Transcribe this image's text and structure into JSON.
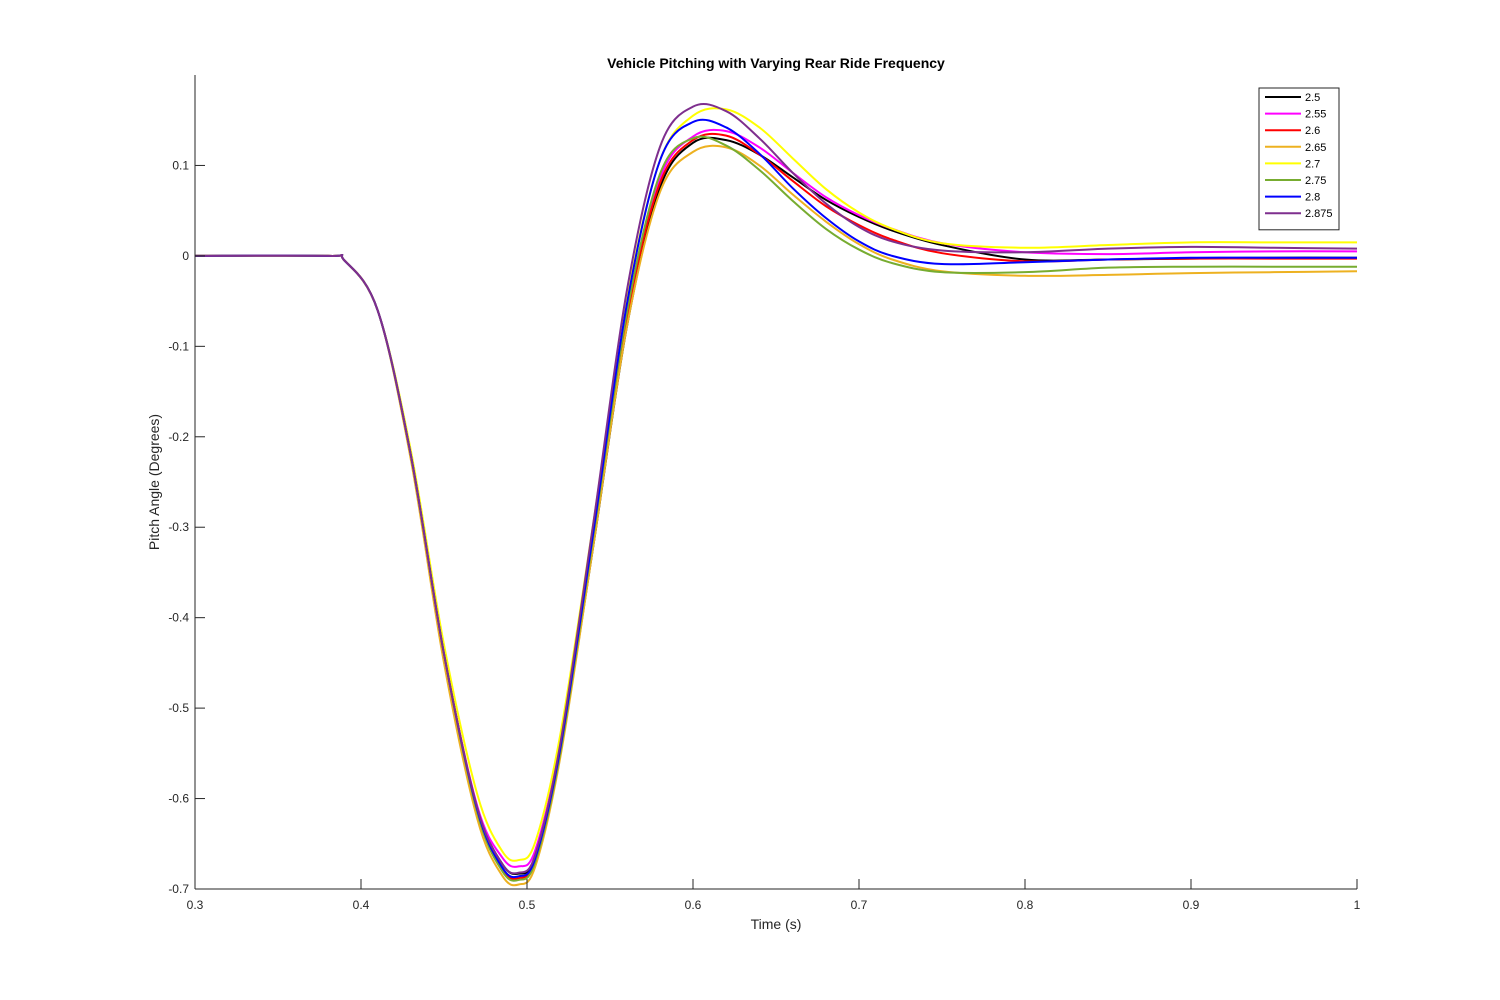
{
  "chart_data": {
    "type": "line",
    "title": "Vehicle Pitching with Varying Rear Ride Frequency",
    "xlabel": "Time (s)",
    "ylabel": "Pitch Angle (Degrees)",
    "xlim": [
      0.3,
      1.0
    ],
    "ylim": [
      -0.7,
      0.2
    ],
    "xticks": [
      0.3,
      0.4,
      0.5,
      0.6,
      0.7,
      0.8,
      0.9,
      1.0
    ],
    "xtick_labels": [
      "0.3",
      "0.4",
      "0.5",
      "0.6",
      "0.7",
      "0.8",
      "0.9",
      "1"
    ],
    "yticks": [
      -0.7,
      -0.6,
      -0.5,
      -0.4,
      -0.3,
      -0.2,
      -0.1,
      0,
      0.1
    ],
    "ytick_labels": [
      "-0.7",
      "-0.6",
      "-0.5",
      "-0.4",
      "-0.3",
      "-0.2",
      "-0.1",
      "0",
      "0.1"
    ],
    "grid": false,
    "legend_position": "top-right",
    "series": [
      {
        "name": "2.5",
        "color": "#000000",
        "x": [
          0.3,
          0.38,
          0.39,
          0.41,
          0.43,
          0.45,
          0.47,
          0.485,
          0.495,
          0.505,
          0.52,
          0.54,
          0.56,
          0.58,
          0.6,
          0.62,
          0.64,
          0.66,
          0.68,
          0.7,
          0.72,
          0.75,
          0.8,
          0.85,
          0.9,
          0.95,
          1.0
        ],
        "y": [
          0,
          0,
          -0.005,
          -0.06,
          -0.22,
          -0.44,
          -0.61,
          -0.672,
          -0.683,
          -0.665,
          -0.55,
          -0.32,
          -0.08,
          0.075,
          0.125,
          0.128,
          0.112,
          0.087,
          0.062,
          0.043,
          0.028,
          0.012,
          -0.004,
          -0.004,
          -0.003,
          -0.002,
          -0.002
        ]
      },
      {
        "name": "2.55",
        "color": "#ff00ff",
        "x": [
          0.3,
          0.38,
          0.39,
          0.41,
          0.43,
          0.45,
          0.47,
          0.485,
          0.495,
          0.505,
          0.52,
          0.54,
          0.56,
          0.58,
          0.6,
          0.62,
          0.64,
          0.66,
          0.68,
          0.7,
          0.72,
          0.75,
          0.8,
          0.85,
          0.9,
          0.95,
          1.0
        ],
        "y": [
          0,
          0,
          -0.005,
          -0.06,
          -0.22,
          -0.44,
          -0.608,
          -0.665,
          -0.675,
          -0.657,
          -0.54,
          -0.31,
          -0.07,
          0.085,
          0.132,
          0.138,
          0.12,
          0.092,
          0.065,
          0.045,
          0.03,
          0.014,
          0.004,
          0.002,
          0.004,
          0.005,
          0.005
        ]
      },
      {
        "name": "2.6",
        "color": "#ff0000",
        "x": [
          0.3,
          0.38,
          0.39,
          0.41,
          0.43,
          0.45,
          0.47,
          0.485,
          0.495,
          0.505,
          0.52,
          0.54,
          0.56,
          0.58,
          0.6,
          0.62,
          0.64,
          0.66,
          0.68,
          0.7,
          0.72,
          0.75,
          0.8,
          0.85,
          0.9,
          0.95,
          1.0
        ],
        "y": [
          0,
          0,
          -0.005,
          -0.06,
          -0.22,
          -0.44,
          -0.612,
          -0.678,
          -0.688,
          -0.668,
          -0.55,
          -0.315,
          -0.07,
          0.08,
          0.128,
          0.133,
          0.112,
          0.083,
          0.055,
          0.034,
          0.018,
          0.003,
          -0.006,
          -0.004,
          -0.003,
          -0.003,
          -0.003
        ]
      },
      {
        "name": "2.65",
        "color": "#edb120",
        "x": [
          0.3,
          0.38,
          0.39,
          0.41,
          0.43,
          0.45,
          0.47,
          0.485,
          0.495,
          0.505,
          0.52,
          0.54,
          0.56,
          0.58,
          0.6,
          0.62,
          0.64,
          0.66,
          0.68,
          0.7,
          0.72,
          0.75,
          0.8,
          0.85,
          0.9,
          0.95,
          1.0
        ],
        "y": [
          0,
          0,
          -0.005,
          -0.06,
          -0.225,
          -0.45,
          -0.622,
          -0.685,
          -0.695,
          -0.675,
          -0.555,
          -0.32,
          -0.08,
          0.07,
          0.115,
          0.12,
          0.1,
          0.068,
          0.038,
          0.013,
          -0.004,
          -0.017,
          -0.022,
          -0.021,
          -0.019,
          -0.018,
          -0.017
        ]
      },
      {
        "name": "2.7",
        "color": "#ffff00",
        "x": [
          0.3,
          0.38,
          0.39,
          0.41,
          0.43,
          0.45,
          0.47,
          0.485,
          0.495,
          0.505,
          0.52,
          0.54,
          0.56,
          0.58,
          0.6,
          0.62,
          0.64,
          0.66,
          0.68,
          0.7,
          0.72,
          0.75,
          0.8,
          0.85,
          0.9,
          0.95,
          1.0
        ],
        "y": [
          0,
          0,
          -0.005,
          -0.06,
          -0.215,
          -0.43,
          -0.595,
          -0.658,
          -0.668,
          -0.648,
          -0.53,
          -0.295,
          -0.05,
          0.105,
          0.155,
          0.162,
          0.142,
          0.108,
          0.074,
          0.048,
          0.03,
          0.014,
          0.009,
          0.012,
          0.015,
          0.015,
          0.015
        ]
      },
      {
        "name": "2.75",
        "color": "#77ac30",
        "x": [
          0.3,
          0.38,
          0.39,
          0.41,
          0.43,
          0.45,
          0.47,
          0.485,
          0.495,
          0.505,
          0.52,
          0.54,
          0.56,
          0.58,
          0.6,
          0.62,
          0.64,
          0.66,
          0.68,
          0.7,
          0.72,
          0.75,
          0.8,
          0.85,
          0.9,
          0.95,
          1.0
        ],
        "y": [
          0,
          0,
          -0.005,
          -0.06,
          -0.22,
          -0.44,
          -0.615,
          -0.68,
          -0.69,
          -0.67,
          -0.55,
          -0.31,
          -0.065,
          0.09,
          0.13,
          0.122,
          0.095,
          0.061,
          0.03,
          0.007,
          -0.008,
          -0.018,
          -0.018,
          -0.013,
          -0.012,
          -0.012,
          -0.012
        ]
      },
      {
        "name": "2.8",
        "color": "#0000ff",
        "x": [
          0.3,
          0.38,
          0.39,
          0.41,
          0.43,
          0.45,
          0.47,
          0.485,
          0.495,
          0.505,
          0.52,
          0.54,
          0.56,
          0.58,
          0.6,
          0.62,
          0.64,
          0.66,
          0.68,
          0.7,
          0.72,
          0.75,
          0.8,
          0.85,
          0.9,
          0.95,
          1.0
        ],
        "y": [
          0,
          0,
          -0.005,
          -0.06,
          -0.22,
          -0.44,
          -0.612,
          -0.676,
          -0.686,
          -0.666,
          -0.545,
          -0.305,
          -0.055,
          0.105,
          0.148,
          0.142,
          0.113,
          0.075,
          0.042,
          0.016,
          0.0,
          -0.009,
          -0.007,
          -0.004,
          -0.002,
          -0.002,
          -0.002
        ]
      },
      {
        "name": "2.875",
        "color": "#7e2f8e",
        "x": [
          0.3,
          0.38,
          0.39,
          0.41,
          0.43,
          0.45,
          0.47,
          0.485,
          0.495,
          0.505,
          0.52,
          0.54,
          0.56,
          0.58,
          0.6,
          0.62,
          0.64,
          0.66,
          0.68,
          0.7,
          0.72,
          0.75,
          0.8,
          0.85,
          0.9,
          0.95,
          1.0
        ],
        "y": [
          0,
          0,
          -0.005,
          -0.06,
          -0.22,
          -0.44,
          -0.61,
          -0.672,
          -0.682,
          -0.662,
          -0.54,
          -0.295,
          -0.04,
          0.12,
          0.165,
          0.16,
          0.13,
          0.092,
          0.058,
          0.032,
          0.016,
          0.006,
          0.004,
          0.008,
          0.01,
          0.009,
          0.008
        ]
      }
    ]
  }
}
